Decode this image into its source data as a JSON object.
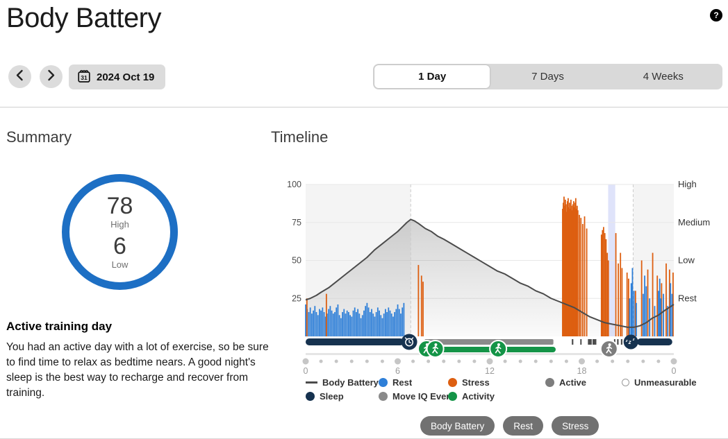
{
  "header": {
    "title": "Body Battery",
    "help_label": "?"
  },
  "controls": {
    "date_label": "2024 Oct 19",
    "calendar_day": "31",
    "tabs": [
      {
        "label": "1 Day",
        "selected": true
      },
      {
        "label": "7 Days",
        "selected": false
      },
      {
        "label": "4 Weeks",
        "selected": false
      }
    ]
  },
  "summary": {
    "heading": "Summary",
    "high_value": "78",
    "high_label": "High",
    "low_value": "6",
    "low_label": "Low",
    "ring_color": "#1d6fc4",
    "insight_title": "Active training day",
    "insight_body": "You had an active day with a lot of exercise, so be sure to find time to relax as bedtime nears. A good night's sleep is the best way to recharge and recover from training."
  },
  "timeline": {
    "heading": "Timeline"
  },
  "chart_data": {
    "type": "area+bar timeline",
    "x_range": [
      0,
      24
    ],
    "y_range": [
      0,
      100
    ],
    "x_tick_hours": [
      0,
      6,
      12,
      18,
      24
    ],
    "x_tick_labels": [
      "0",
      "6",
      "12",
      "18",
      "0"
    ],
    "y_ticks": [
      25,
      50,
      75,
      100
    ],
    "zone_labels": [
      {
        "label": "High",
        "value": 100
      },
      {
        "label": "Medium",
        "value": 75
      },
      {
        "label": "Low",
        "value": 50
      },
      {
        "label": "Rest",
        "value": 25
      }
    ],
    "sleep_regions": [
      [
        0,
        6.85
      ],
      [
        21.35,
        24
      ]
    ],
    "activity_band": [
      19.72,
      20.18
    ],
    "body_battery_points": [
      [
        0,
        24
      ],
      [
        0.3,
        25
      ],
      [
        0.7,
        27
      ],
      [
        1,
        29
      ],
      [
        1.5,
        32
      ],
      [
        2,
        36
      ],
      [
        2.5,
        40
      ],
      [
        3,
        44
      ],
      [
        3.5,
        48
      ],
      [
        4,
        52
      ],
      [
        4.5,
        57
      ],
      [
        5,
        61
      ],
      [
        5.5,
        65
      ],
      [
        6,
        69
      ],
      [
        6.3,
        72
      ],
      [
        6.6,
        75
      ],
      [
        6.85,
        77
      ],
      [
        7.1,
        76
      ],
      [
        7.4,
        74
      ],
      [
        7.8,
        71
      ],
      [
        8.2,
        69
      ],
      [
        8.6,
        66
      ],
      [
        9,
        64
      ],
      [
        9.5,
        61
      ],
      [
        10,
        58
      ],
      [
        10.5,
        55
      ],
      [
        11,
        52
      ],
      [
        11.5,
        49
      ],
      [
        12,
        46
      ],
      [
        12.5,
        43
      ],
      [
        13,
        41
      ],
      [
        13.5,
        38
      ],
      [
        14,
        35
      ],
      [
        14.5,
        33
      ],
      [
        15,
        30
      ],
      [
        15.5,
        28
      ],
      [
        16,
        25
      ],
      [
        16.5,
        23
      ],
      [
        17,
        21
      ],
      [
        17.5,
        19
      ],
      [
        18,
        16
      ],
      [
        18.5,
        13
      ],
      [
        19,
        11
      ],
      [
        19.5,
        9
      ],
      [
        20,
        8
      ],
      [
        20.5,
        7
      ],
      [
        21,
        6
      ],
      [
        21.4,
        6
      ],
      [
        21.8,
        7
      ],
      [
        22.2,
        9
      ],
      [
        22.6,
        12
      ],
      [
        23,
        14
      ],
      [
        23.4,
        17
      ],
      [
        23.7,
        19
      ],
      [
        24,
        21
      ]
    ],
    "rest_sleep_bars": {
      "start": 0,
      "step": 0.1,
      "heights": [
        21,
        18,
        16,
        19,
        15,
        17,
        20,
        16,
        14,
        18,
        17,
        19,
        16,
        13,
        15,
        18,
        20,
        17,
        15,
        16,
        19,
        21,
        14,
        12,
        16,
        18,
        15,
        17,
        16,
        14,
        13,
        17,
        19,
        16,
        18,
        15,
        12,
        14,
        17,
        20,
        22,
        19,
        16,
        18,
        15,
        13,
        16,
        19,
        17,
        14,
        12,
        15,
        18,
        16,
        19,
        17,
        15,
        13,
        16,
        18,
        21,
        18,
        15,
        19,
        22
      ]
    },
    "stress_block": {
      "start": 16.75,
      "step": 0.045,
      "heights": [
        84,
        88,
        92,
        86,
        90,
        87,
        82,
        89,
        91,
        85,
        88,
        84,
        90,
        86,
        83,
        87,
        89,
        85,
        88,
        91,
        84,
        86,
        83
      ]
    },
    "event_bars": [
      [
        0.08,
        25,
        "s"
      ],
      [
        1.35,
        28,
        "s"
      ],
      [
        7.35,
        47,
        "s"
      ],
      [
        7.55,
        40,
        "s"
      ],
      [
        7.65,
        36,
        "s"
      ],
      [
        17.84,
        80,
        "s"
      ],
      [
        17.94,
        78,
        "s"
      ],
      [
        18.06,
        74,
        "s"
      ],
      [
        18.18,
        79,
        "s"
      ],
      [
        18.32,
        71,
        "s"
      ],
      [
        19.28,
        67,
        "s"
      ],
      [
        19.35,
        70,
        "s"
      ],
      [
        19.42,
        72,
        "s"
      ],
      [
        19.5,
        68,
        "s"
      ],
      [
        19.58,
        64,
        "s"
      ],
      [
        19.66,
        55,
        "s"
      ],
      [
        19.73,
        50,
        "s"
      ],
      [
        20.22,
        68,
        "s"
      ],
      [
        20.38,
        48,
        "s"
      ],
      [
        20.52,
        55,
        "s"
      ],
      [
        20.62,
        45,
        "s"
      ],
      [
        20.95,
        42,
        "s"
      ],
      [
        21.05,
        38,
        "s"
      ],
      [
        21.5,
        30,
        "s"
      ],
      [
        21.9,
        50,
        "s"
      ],
      [
        22.3,
        44,
        "s"
      ],
      [
        22.62,
        55,
        "s"
      ],
      [
        22.92,
        40,
        "s"
      ],
      [
        23.2,
        35,
        "s"
      ],
      [
        23.5,
        48,
        "s"
      ],
      [
        23.72,
        44,
        "s"
      ],
      [
        23.95,
        42,
        "s"
      ],
      [
        21.12,
        25,
        "r"
      ],
      [
        21.22,
        35,
        "r"
      ],
      [
        21.3,
        45,
        "r"
      ],
      [
        21.4,
        30,
        "r"
      ],
      [
        21.55,
        22,
        "r"
      ],
      [
        22.0,
        28,
        "r"
      ],
      [
        22.1,
        40,
        "r"
      ],
      [
        22.2,
        33,
        "r"
      ],
      [
        22.42,
        25,
        "r"
      ],
      [
        22.75,
        20,
        "r"
      ],
      [
        23.0,
        30,
        "r"
      ],
      [
        23.08,
        38,
        "r"
      ],
      [
        23.15,
        25,
        "r"
      ],
      [
        23.32,
        28,
        "r"
      ],
      [
        23.6,
        20,
        "r"
      ],
      [
        23.78,
        35,
        "r"
      ],
      [
        23.88,
        28,
        "r"
      ]
    ],
    "ribbon": {
      "sleep_bars": [
        [
          0,
          6.4
        ],
        [
          21.6,
          23.9
        ]
      ],
      "move_iq_bar": [
        7.75,
        16.15
      ],
      "move_iq_segments": [
        [
          17.35,
          17.45
        ],
        [
          17.9,
          17.98
        ],
        [
          18.4,
          18.65
        ],
        [
          18.7,
          18.95
        ],
        [
          20.1,
          20.16
        ],
        [
          20.3,
          20.4
        ],
        [
          20.55,
          20.65
        ]
      ],
      "activity_bar": [
        7.7,
        16.3
      ],
      "icons": [
        {
          "type": "alarm",
          "h": 6.75
        },
        {
          "type": "walk",
          "h": 7.88,
          "color_key": "activity"
        },
        {
          "type": "walk",
          "h": 8.45,
          "color_key": "activity"
        },
        {
          "type": "walk",
          "h": 12.55,
          "color_key": "activity"
        },
        {
          "type": "walk",
          "h": 19.78,
          "color_key": "active"
        },
        {
          "type": "zzz",
          "h": 21.2
        }
      ]
    },
    "colors": {
      "rest": "#2e7fd8",
      "stress": "#dd5f11",
      "body_battery_line": "#4b4b4b",
      "sleep": "#16324f",
      "activity": "#149447",
      "move_iq": "#8a8a8a",
      "active": "#7d7d7d",
      "unmeasurable_border": "#9a9a9a",
      "sleep_shade": "#f4f4f4",
      "activity_band": "#dfe3fa",
      "dots": "#c6c6c6",
      "track": "#e5e5e5",
      "grid": "#e7e7e7",
      "dash_line": "#cccccc"
    }
  },
  "legend": {
    "rows": [
      [
        {
          "label": "Body Battery",
          "swatch": "line",
          "color": "#4b4b4b"
        },
        {
          "label": "Rest",
          "swatch": "dot",
          "color": "#2e7fd8"
        },
        {
          "label": "Stress",
          "swatch": "dot",
          "color": "#dd5f11"
        },
        {
          "label": "Active",
          "swatch": "dot",
          "color": "#7d7d7d"
        },
        {
          "label": "Unmeasurable",
          "swatch": "ring",
          "color": "#ffffff"
        }
      ],
      [
        {
          "label": "Sleep",
          "swatch": "dot",
          "color": "#16324f"
        },
        {
          "label": "Move IQ Event",
          "swatch": "dot",
          "color": "#8a8a8a"
        },
        {
          "label": "Activity",
          "swatch": "dot",
          "color": "#149447"
        }
      ]
    ]
  },
  "footer_buttons": [
    "Body Battery",
    "Rest",
    "Stress"
  ]
}
